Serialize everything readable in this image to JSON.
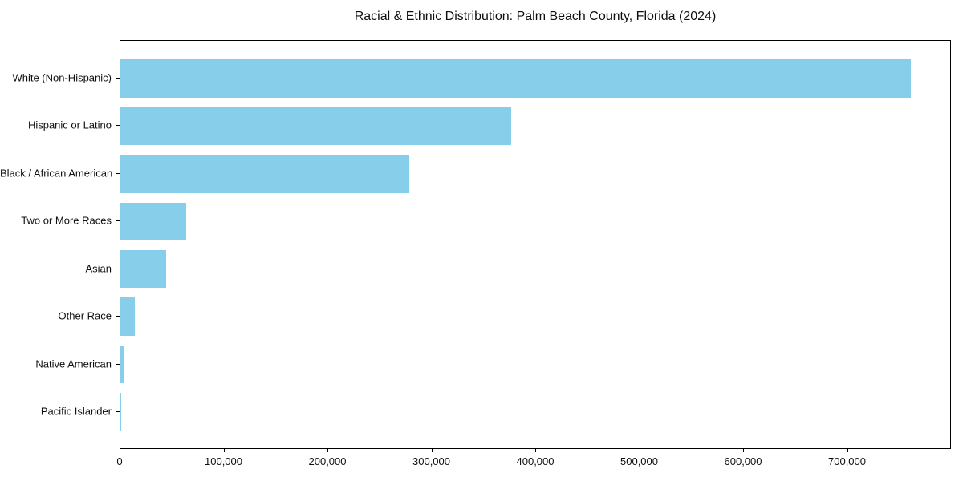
{
  "chart_data": {
    "type": "bar",
    "orientation": "horizontal",
    "title": "Racial & Ethnic Distribution: Palm Beach County, Florida (2024)",
    "xlabel": "",
    "ylabel": "",
    "categories": [
      "White (Non-Hispanic)",
      "Hispanic or Latino",
      "Black / African American",
      "Two or More Races",
      "Asian",
      "Other Race",
      "Native American",
      "Pacific Islander"
    ],
    "values": [
      761000,
      376000,
      278000,
      63000,
      44000,
      14000,
      3000,
      1000
    ],
    "xlim": [
      0,
      800000
    ],
    "x_ticks": [
      0,
      100000,
      200000,
      300000,
      400000,
      500000,
      600000,
      700000
    ],
    "x_tick_labels": [
      "0",
      "100,000",
      "200,000",
      "300,000",
      "400,000",
      "500,000",
      "600,000",
      "700,000"
    ],
    "bar_color": "#87CEEB",
    "axis_color": "#000000",
    "text_color": "#0f0f0f",
    "background": "#ffffff",
    "grid": false,
    "legend": null
  }
}
